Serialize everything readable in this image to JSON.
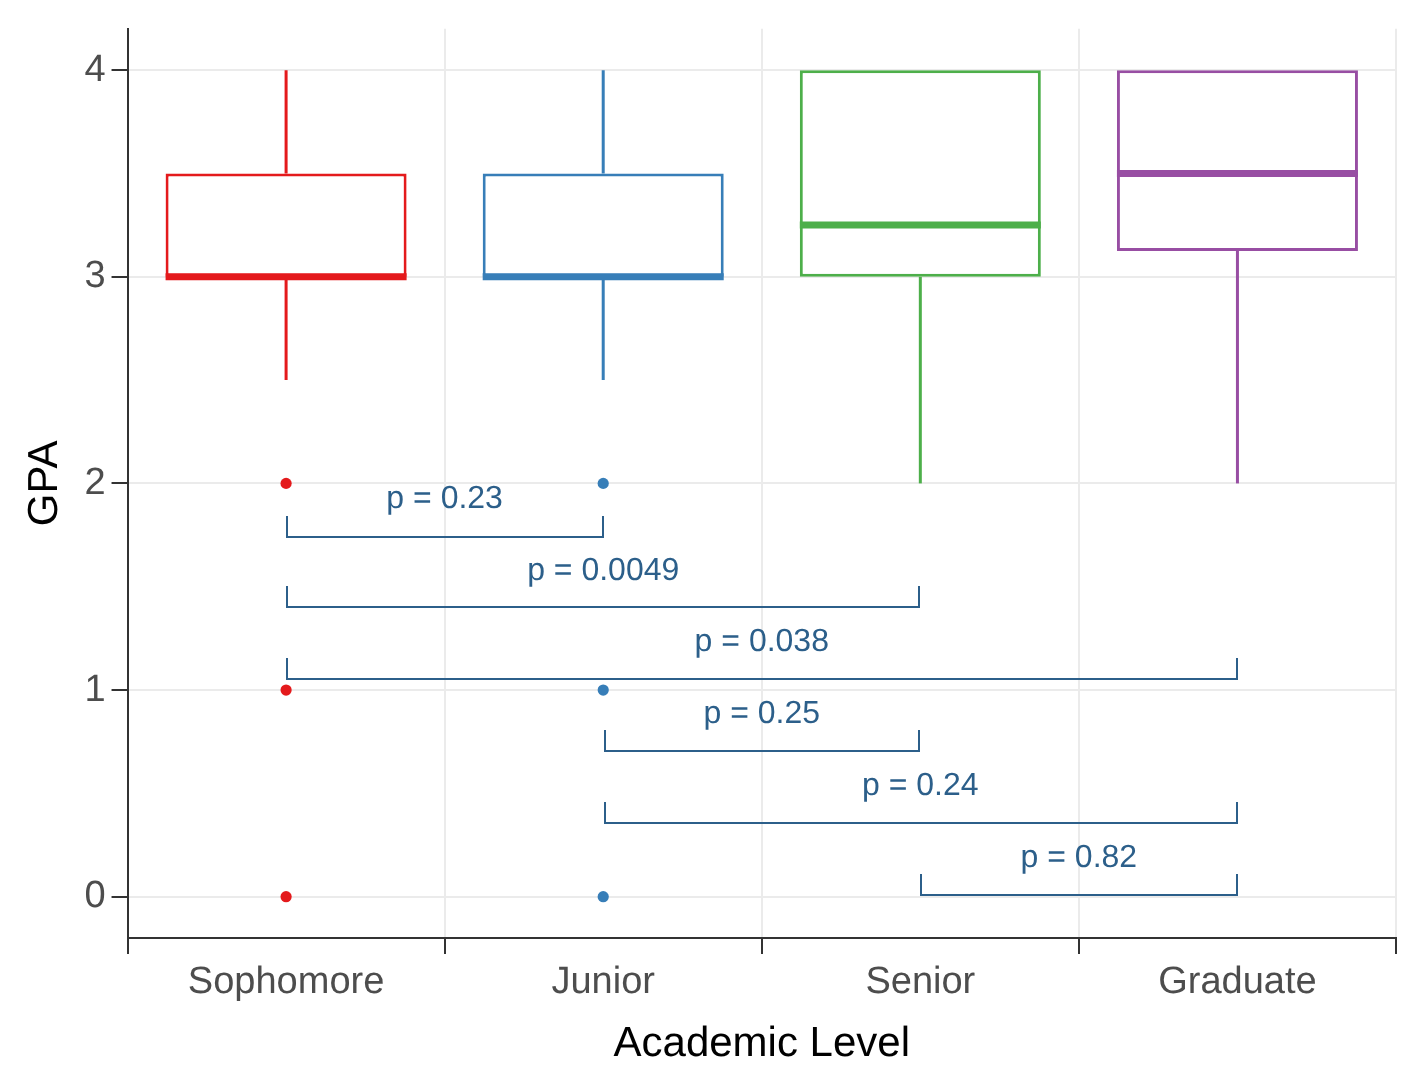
{
  "chart_data": {
    "type": "box",
    "xlabel": "Academic Level",
    "ylabel": "GPA",
    "categories": [
      "Sophomore",
      "Junior",
      "Senior",
      "Graduate"
    ],
    "colors": [
      "#e41a1c",
      "#377eb8",
      "#4daf4a",
      "#984ea3"
    ],
    "boxes": [
      {
        "low": 2.5,
        "q1": 3,
        "median": 3,
        "q3": 3.5,
        "high": 4,
        "outliers": [
          2,
          1,
          0
        ]
      },
      {
        "low": 2.5,
        "q1": 3,
        "median": 3,
        "q3": 3.5,
        "high": 4,
        "outliers": [
          2,
          1,
          0
        ]
      },
      {
        "low": 2,
        "q1": 3,
        "median": 3.25,
        "q3": 4,
        "high": 4
      },
      {
        "low": 2,
        "q1": 3.125,
        "median": 3.5,
        "q3": 4,
        "high": 4
      }
    ],
    "ylim": [
      -0.2,
      4.2
    ],
    "yticks": [
      0,
      1,
      2,
      3,
      4
    ],
    "grid": true,
    "legend": false,
    "annotations": [
      "p = 0.23",
      "p = 0.0049",
      "p = 0.038",
      "p = 0.25",
      "p = 0.24",
      "p = 0.82"
    ]
  }
}
